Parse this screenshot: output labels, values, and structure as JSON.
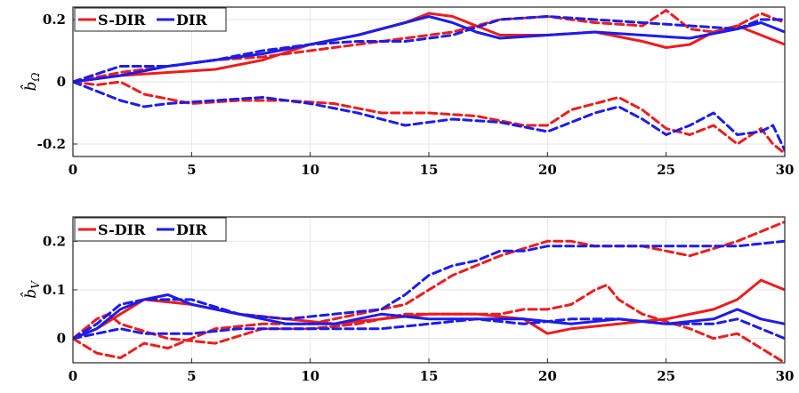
{
  "colors": {
    "s_dir": "#ee1c1c",
    "dir": "#1c1cee"
  },
  "chart_data": [
    {
      "type": "line",
      "ylabel": "b̂",
      "ylabel_sub": "Ω",
      "xlim": [
        0,
        30
      ],
      "ylim": [
        -0.24,
        0.24
      ],
      "xticks": [
        0,
        5,
        10,
        15,
        20,
        25,
        30
      ],
      "yticks": [
        -0.2,
        0,
        0.2
      ],
      "ytick_labels": [
        "-0.2",
        "0",
        "0.2"
      ],
      "grid": true,
      "legend_position": "top-left",
      "legend": [
        "S-DIR",
        "DIR"
      ],
      "series": [
        {
          "group": "S-DIR",
          "style": "solid",
          "x": [
            0,
            2,
            4,
            6,
            8,
            10,
            12,
            14,
            15,
            16,
            17,
            18,
            20,
            22,
            24,
            25,
            26,
            27,
            28,
            29,
            30
          ],
          "y": [
            0,
            0.02,
            0.03,
            0.04,
            0.07,
            0.12,
            0.15,
            0.19,
            0.22,
            0.21,
            0.18,
            0.15,
            0.15,
            0.16,
            0.13,
            0.11,
            0.12,
            0.16,
            0.18,
            0.15,
            0.12
          ]
        },
        {
          "group": "S-DIR",
          "style": "dashed",
          "x": [
            0,
            2,
            4,
            6,
            8,
            10,
            12,
            14,
            16,
            18,
            20,
            22,
            24,
            25,
            26,
            27,
            28,
            29,
            30
          ],
          "y": [
            0,
            0.03,
            0.05,
            0.07,
            0.08,
            0.1,
            0.12,
            0.14,
            0.16,
            0.2,
            0.21,
            0.19,
            0.18,
            0.23,
            0.17,
            0.16,
            0.18,
            0.22,
            0.19
          ]
        },
        {
          "group": "S-DIR",
          "style": "dashed",
          "x": [
            0,
            1,
            2,
            3,
            5,
            7,
            9,
            11,
            13,
            15,
            17,
            19,
            20,
            21,
            22,
            23,
            24,
            25,
            26,
            27,
            28,
            29,
            29.5,
            30
          ],
          "y": [
            0,
            -0.01,
            0,
            -0.04,
            -0.07,
            -0.06,
            -0.06,
            -0.07,
            -0.1,
            -0.1,
            -0.11,
            -0.14,
            -0.14,
            -0.09,
            -0.07,
            -0.05,
            -0.09,
            -0.15,
            -0.17,
            -0.14,
            -0.2,
            -0.15,
            -0.2,
            -0.23
          ]
        },
        {
          "group": "DIR",
          "style": "solid",
          "x": [
            0,
            2,
            4,
            6,
            8,
            10,
            12,
            14,
            15,
            16,
            17,
            18,
            20,
            22,
            24,
            26,
            28,
            29,
            30
          ],
          "y": [
            0,
            0.02,
            0.05,
            0.07,
            0.09,
            0.12,
            0.15,
            0.19,
            0.21,
            0.19,
            0.16,
            0.14,
            0.15,
            0.16,
            0.15,
            0.14,
            0.17,
            0.19,
            0.16
          ]
        },
        {
          "group": "DIR",
          "style": "dashed",
          "x": [
            0,
            2,
            4,
            6,
            8,
            10,
            12,
            14,
            16,
            18,
            20,
            22,
            24,
            26,
            28,
            29,
            30
          ],
          "y": [
            0,
            0.05,
            0.05,
            0.07,
            0.1,
            0.12,
            0.13,
            0.13,
            0.15,
            0.2,
            0.21,
            0.2,
            0.19,
            0.18,
            0.17,
            0.2,
            0.2
          ]
        },
        {
          "group": "DIR",
          "style": "dashed",
          "x": [
            0,
            1,
            2,
            3,
            4,
            6,
            8,
            10,
            12,
            14,
            16,
            18,
            20,
            22,
            23,
            24,
            25,
            26,
            27,
            28,
            29,
            29.5,
            30
          ],
          "y": [
            0,
            -0.03,
            -0.06,
            -0.08,
            -0.07,
            -0.06,
            -0.05,
            -0.07,
            -0.1,
            -0.14,
            -0.12,
            -0.13,
            -0.16,
            -0.1,
            -0.08,
            -0.12,
            -0.17,
            -0.14,
            -0.1,
            -0.17,
            -0.16,
            -0.14,
            -0.22
          ]
        }
      ]
    },
    {
      "type": "line",
      "ylabel": "b̂",
      "ylabel_sub": "V",
      "xlim": [
        0,
        30
      ],
      "ylim": [
        -0.05,
        0.25
      ],
      "xticks": [
        0,
        5,
        10,
        15,
        20,
        25,
        30
      ],
      "yticks": [
        0,
        0.1,
        0.2
      ],
      "ytick_labels": [
        "0",
        "0.1",
        "0.2"
      ],
      "grid": true,
      "legend_position": "top-left",
      "legend": [
        "S-DIR",
        "DIR"
      ],
      "series": [
        {
          "group": "S-DIR",
          "style": "solid",
          "x": [
            0,
            1,
            2,
            3,
            5,
            7,
            9,
            11,
            13,
            15,
            17,
            19,
            20,
            21,
            23,
            25,
            27,
            28,
            29,
            30
          ],
          "y": [
            0,
            0.02,
            0.05,
            0.08,
            0.07,
            0.05,
            0.04,
            0.03,
            0.04,
            0.05,
            0.05,
            0.04,
            0.01,
            0.02,
            0.03,
            0.04,
            0.06,
            0.08,
            0.12,
            0.1
          ]
        },
        {
          "group": "S-DIR",
          "style": "dashed",
          "x": [
            0,
            1,
            2,
            3,
            4,
            6,
            8,
            10,
            12,
            14,
            16,
            18,
            20,
            21,
            22,
            24,
            26,
            28,
            29,
            30
          ],
          "y": [
            0,
            -0.03,
            -0.04,
            -0.01,
            -0.02,
            0.02,
            0.03,
            0.03,
            0.05,
            0.07,
            0.13,
            0.17,
            0.2,
            0.2,
            0.19,
            0.19,
            0.17,
            0.2,
            0.22,
            0.24
          ]
        },
        {
          "group": "S-DIR",
          "style": "dashed",
          "x": [
            0,
            1,
            1.5,
            2,
            4,
            6,
            8,
            10,
            12,
            14,
            16,
            18,
            19,
            20,
            21,
            22,
            22.5,
            23,
            24,
            26,
            27,
            28,
            29,
            30
          ],
          "y": [
            0,
            0.04,
            0.05,
            0.03,
            0,
            -0.01,
            0.02,
            0.02,
            0.03,
            0.05,
            0.05,
            0.05,
            0.06,
            0.06,
            0.07,
            0.1,
            0.11,
            0.08,
            0.05,
            0.02,
            0,
            0.01,
            -0.02,
            -0.05
          ]
        },
        {
          "group": "DIR",
          "style": "solid",
          "x": [
            0,
            1,
            2,
            3,
            4,
            5,
            7,
            9,
            11,
            13,
            15,
            17,
            19,
            21,
            23,
            25,
            27,
            28,
            29,
            30
          ],
          "y": [
            0,
            0.02,
            0.06,
            0.08,
            0.09,
            0.07,
            0.05,
            0.03,
            0.03,
            0.05,
            0.04,
            0.04,
            0.04,
            0.03,
            0.04,
            0.03,
            0.04,
            0.06,
            0.04,
            0.03
          ]
        },
        {
          "group": "DIR",
          "style": "dashed",
          "x": [
            0,
            1,
            2,
            3,
            5,
            7,
            9,
            11,
            13,
            14,
            15,
            16,
            17,
            18,
            19,
            20,
            22,
            24,
            26,
            28,
            30
          ],
          "y": [
            0,
            0.03,
            0.07,
            0.08,
            0.08,
            0.05,
            0.04,
            0.05,
            0.06,
            0.09,
            0.13,
            0.15,
            0.16,
            0.18,
            0.18,
            0.19,
            0.19,
            0.19,
            0.19,
            0.19,
            0.2
          ]
        },
        {
          "group": "DIR",
          "style": "dashed",
          "x": [
            0,
            1,
            2,
            3,
            5,
            7,
            9,
            11,
            13,
            15,
            17,
            19,
            21,
            23,
            25,
            27,
            28,
            29,
            30
          ],
          "y": [
            0,
            0.01,
            0.02,
            0.01,
            0.01,
            0.02,
            0.02,
            0.02,
            0.02,
            0.03,
            0.04,
            0.03,
            0.04,
            0.04,
            0.03,
            0.03,
            0.04,
            0.02,
            0
          ]
        }
      ]
    }
  ]
}
